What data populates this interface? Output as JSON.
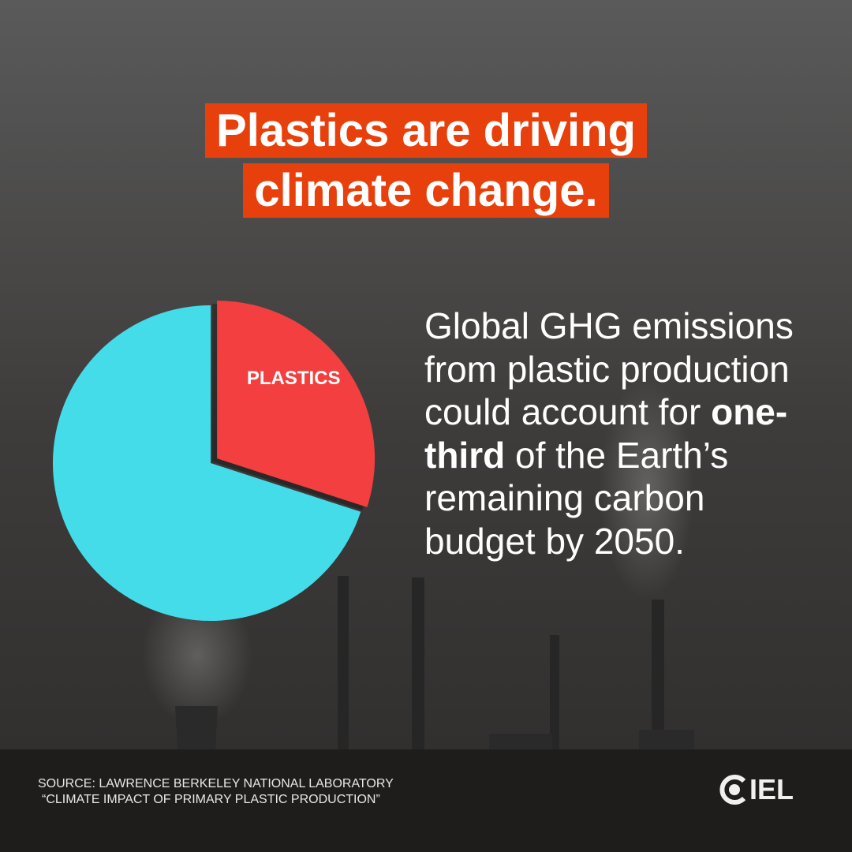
{
  "header": {
    "title": [
      "Plastics are driving",
      "climate change."
    ]
  },
  "chart_data": {
    "type": "pie",
    "categories": [
      "PLASTICS",
      null
    ],
    "values": [
      30,
      70
    ],
    "colors": [
      "#f33f40",
      "#45dcea"
    ]
  },
  "body": [
    "Global GHG emissions from plastic production could account for ",
    "one-third",
    " of the Earth’s remaining carbon budget by 2050."
  ],
  "source": [
    "SOURCE: LAWRENCE BERKELEY NATIONAL LABORATORY",
    "“CLIMATE IMPACT OF PRIMARY PLASTIC PRODUCTION”"
  ],
  "logo": "IEL"
}
